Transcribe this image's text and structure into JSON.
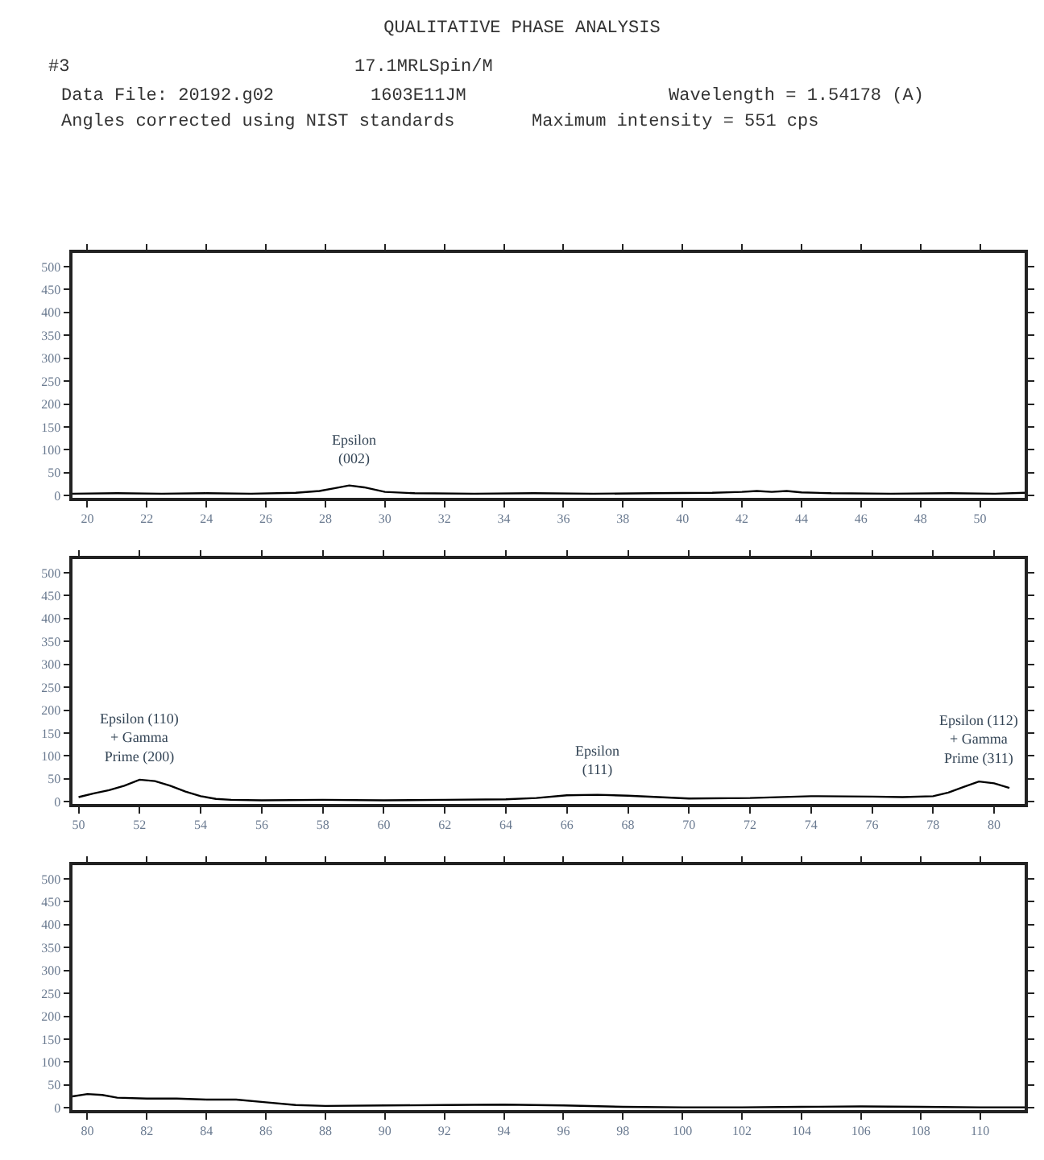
{
  "chart_data": [
    {
      "type": "line",
      "title": "QUALITATIVE PHASE ANALYSIS",
      "annotations": [
        "#3",
        "17.1MRLSpin/M",
        "Data File: 20192.g02",
        "1603E11JM",
        "Wavelength = 1.54178 (A)",
        "Angles corrected using NIST standards",
        "Maximum intensity = 551 cps",
        {
          "text": "Epsilon\n(002)",
          "x": 29,
          "y": 25
        }
      ],
      "series": [
        {
          "color": "#000000",
          "x": [
            19.5,
            21,
            22.5,
            24,
            25.5,
            27,
            27.8,
            28.3,
            28.8,
            29.3,
            30,
            31,
            33,
            35,
            37,
            39,
            41,
            42,
            42.5,
            43,
            43.5,
            44,
            45,
            47,
            49,
            50.5,
            51.5
          ],
          "values": [
            4,
            5,
            4,
            5,
            4,
            6,
            10,
            16,
            22,
            18,
            8,
            5,
            4,
            5,
            4,
            5,
            6,
            8,
            10,
            8,
            10,
            7,
            5,
            4,
            5,
            4,
            6
          ]
        }
      ],
      "xlim": [
        19.5,
        51.5
      ],
      "xticks": [
        20,
        22,
        24,
        26,
        28,
        30,
        32,
        34,
        36,
        38,
        40,
        42,
        44,
        46,
        48,
        50
      ],
      "ylim": [
        -5,
        530
      ],
      "yticks": [
        0,
        50,
        100,
        150,
        200,
        250,
        300,
        350,
        400,
        450,
        500
      ],
      "grid": false,
      "marker": "none",
      "line_style": "solid"
    },
    {
      "type": "line",
      "annotations": [
        {
          "text": "Epsilon (110)\n+ Gamma\nPrime (200)",
          "x": 52,
          "y": 48
        },
        {
          "text": "Epsilon\n(111)",
          "x": 67,
          "y": 15
        },
        {
          "text": "Epsilon (112)\n+ Gamma\nPrime (311)",
          "x": 79.5,
          "y": 44
        }
      ],
      "series": [
        {
          "color": "#000000",
          "x": [
            50,
            50.5,
            51,
            51.5,
            52,
            52.5,
            53,
            53.5,
            54,
            54.5,
            55,
            56,
            58,
            60,
            62,
            64,
            65,
            66,
            67,
            68,
            69,
            70,
            72,
            74,
            76,
            77,
            78,
            78.5,
            79,
            79.5,
            80,
            80.5
          ],
          "values": [
            10,
            18,
            25,
            35,
            48,
            45,
            35,
            22,
            12,
            6,
            4,
            3,
            4,
            3,
            4,
            5,
            8,
            14,
            15,
            13,
            10,
            7,
            8,
            12,
            11,
            10,
            12,
            20,
            32,
            44,
            40,
            30
          ],
          "name": null
        }
      ],
      "xlim": [
        49.8,
        81
      ],
      "xticks": [
        50,
        52,
        54,
        56,
        58,
        60,
        62,
        64,
        66,
        68,
        70,
        72,
        74,
        76,
        78,
        80
      ],
      "ylim": [
        -5,
        530
      ],
      "yticks": [
        0,
        50,
        100,
        150,
        200,
        250,
        300,
        350,
        400,
        450,
        500
      ],
      "grid": false,
      "marker": "none",
      "line_style": "solid"
    },
    {
      "type": "line",
      "series": [
        {
          "color": "#000000",
          "x": [
            79.5,
            80,
            80.5,
            81,
            82,
            83,
            84,
            85,
            86,
            87,
            88,
            90,
            92,
            94,
            96,
            98,
            100,
            102,
            104,
            106,
            108,
            110,
            111.5
          ],
          "values": [
            25,
            30,
            28,
            22,
            20,
            20,
            18,
            18,
            12,
            6,
            4,
            5,
            6,
            7,
            5,
            2,
            1,
            1,
            2,
            3,
            2,
            1,
            1
          ]
        }
      ],
      "xlim": [
        79.5,
        111.5
      ],
      "xticks": [
        80,
        82,
        84,
        86,
        88,
        90,
        92,
        94,
        96,
        98,
        100,
        102,
        104,
        106,
        108,
        110
      ],
      "ylim": [
        -5,
        530
      ],
      "yticks": [
        0,
        50,
        100,
        150,
        200,
        250,
        300,
        350,
        400,
        450,
        500
      ],
      "grid": false,
      "marker": "none",
      "line_style": "solid"
    }
  ]
}
